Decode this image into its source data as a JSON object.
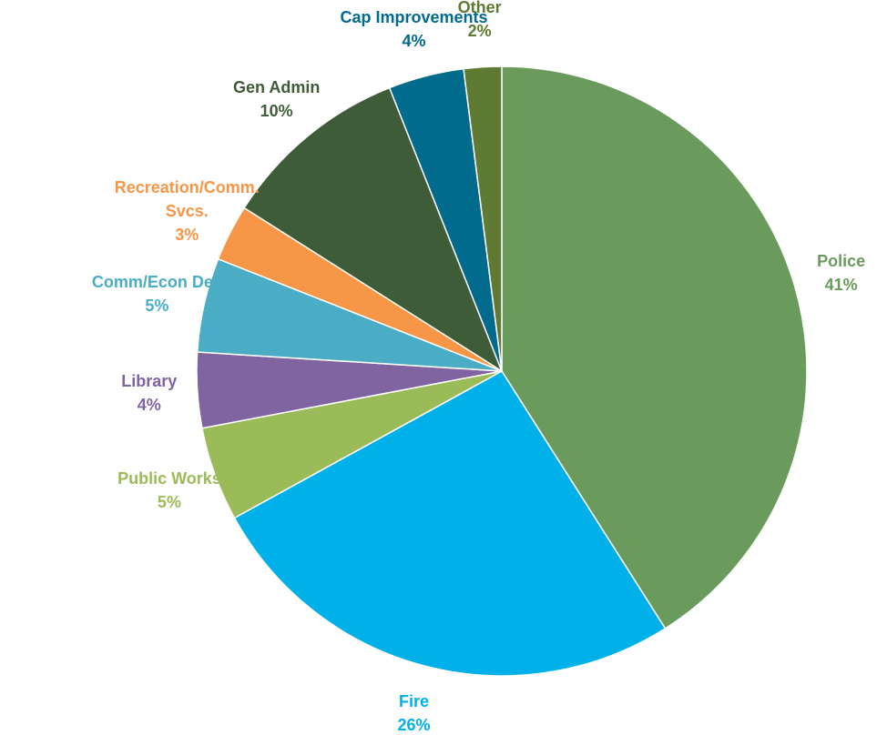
{
  "chart_data": {
    "type": "pie",
    "categories": [
      "Police",
      "Fire",
      "Public Works",
      "Library",
      "Comm/Econ Dev",
      "Recreation/Comm. Svcs.",
      "Gen Admin",
      "Cap Improvements",
      "Other"
    ],
    "values": [
      41,
      26,
      5,
      4,
      5,
      3,
      10,
      4,
      2
    ],
    "value_labels": [
      "41%",
      "26%",
      "5%",
      "4%",
      "5%",
      "3%",
      "10%",
      "4%",
      "2%"
    ],
    "colors": [
      "#6a9b5d",
      "#00b0e9",
      "#9bbb59",
      "#8064a2",
      "#4bacc6",
      "#f79646",
      "#3e5c38",
      "#006b8c",
      "#5f7a32"
    ]
  }
}
